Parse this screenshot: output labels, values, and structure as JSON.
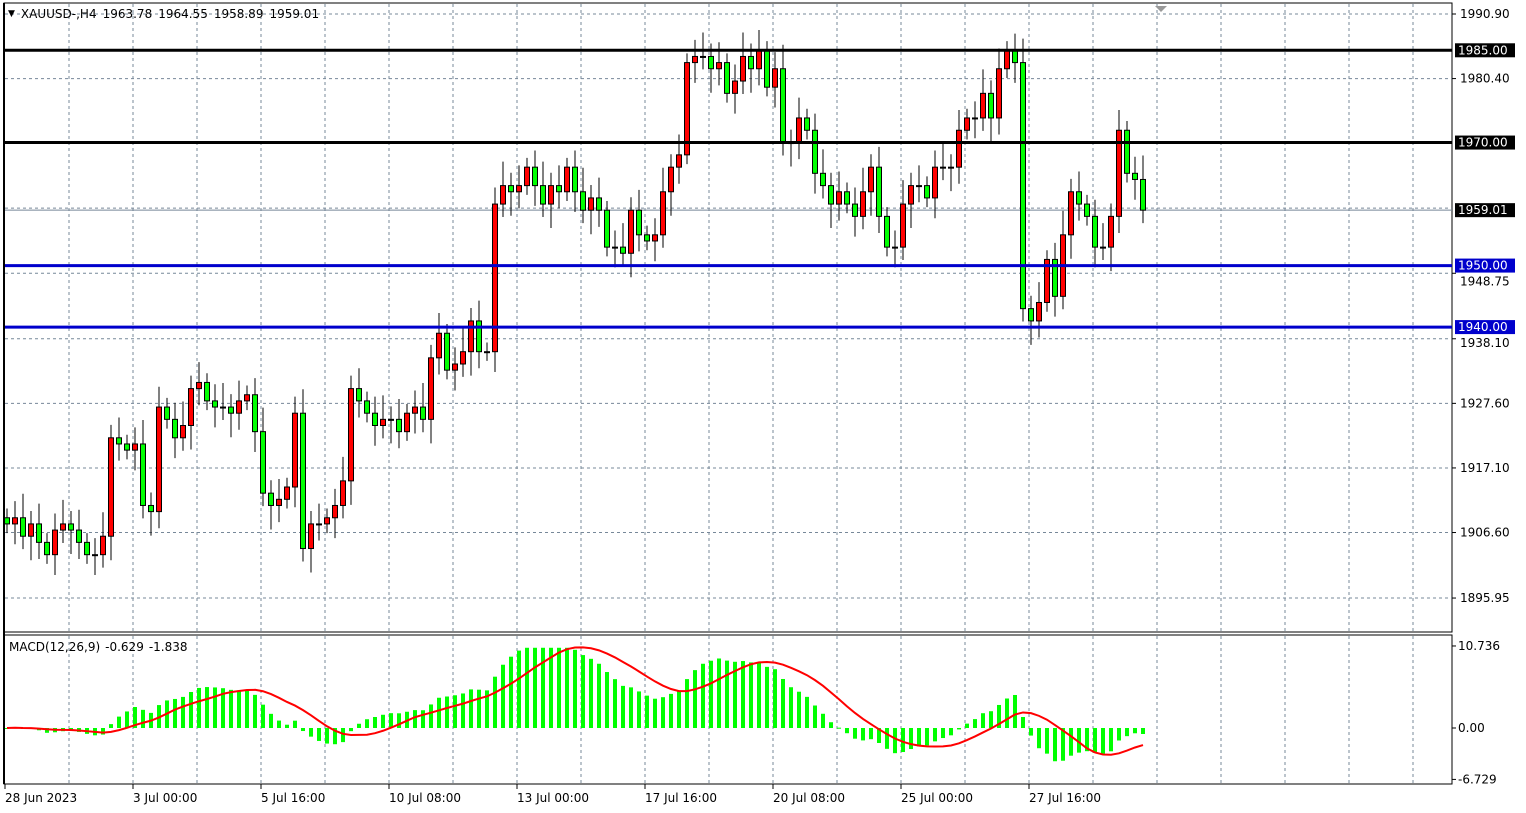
{
  "header": {
    "symbol": "XAUUSD-,H4",
    "open": "1963.78",
    "high": "1964.55",
    "low": "1958.89",
    "close": "1959.01"
  },
  "macd_header": {
    "label": "MACD(12,26,9)",
    "main": "-0.629",
    "signal": "-1.838"
  },
  "colors": {
    "bull_body": "#ff0000",
    "bear_body": "#00ff00",
    "wick": "#000000",
    "grid": "#778899",
    "resistance_line": "#000000",
    "support_line": "#0000cc",
    "macd_hist": "#00ff00",
    "macd_signal": "#ff0000"
  },
  "chart_data": [
    {
      "type": "candlestick",
      "title": "XAUUSD-,H4",
      "timeframe": "H4",
      "ylim": [
        1893,
        1993
      ],
      "y_ticks": [
        "1990.90",
        "1980.40",
        "1948.75",
        "1938.10",
        "1927.60",
        "1917.10",
        "1906.60",
        "1895.95"
      ],
      "x_ticks": [
        "28 Jun 2023",
        "3 Jul 00:00",
        "5 Jul 16:00",
        "10 Jul 08:00",
        "13 Jul 00:00",
        "17 Jul 16:00",
        "20 Jul 08:00",
        "25 Jul 00:00",
        "27 Jul 16:00"
      ],
      "grid": true,
      "close": [
        1908,
        1909,
        1906,
        1908,
        1905,
        1903,
        1907,
        1908,
        1907,
        1905,
        1903,
        1903,
        1906,
        1922,
        1921,
        1920,
        1921,
        1911,
        1910,
        1927,
        1925,
        1922,
        1924,
        1930,
        1931,
        1928,
        1927,
        1927,
        1926,
        1928,
        1929,
        1923,
        1913,
        1911,
        1912,
        1914,
        1926,
        1904,
        1908,
        1908,
        1909,
        1911,
        1915,
        1930,
        1928,
        1926,
        1924,
        1925,
        1925,
        1923,
        1926,
        1927,
        1925,
        1935,
        1939,
        1933,
        1934,
        1936,
        1941,
        1936,
        1936,
        1960,
        1963,
        1962,
        1963,
        1966,
        1963,
        1960,
        1963,
        1962,
        1966,
        1962,
        1959,
        1961,
        1959,
        1953,
        1953,
        1952,
        1959,
        1955,
        1954,
        1955,
        1962,
        1966,
        1968,
        1983,
        1984,
        1984,
        1982,
        1983,
        1978,
        1980,
        1984,
        1982,
        1985,
        1979,
        1982,
        1970,
        1970,
        1974,
        1972,
        1965,
        1963,
        1960,
        1962,
        1960,
        1958,
        1962,
        1966,
        1958,
        1953,
        1953,
        1960,
        1963,
        1963,
        1961,
        1966,
        1966,
        1966,
        1972,
        1974,
        1974,
        1978,
        1974,
        1982,
        1985,
        1983,
        1943,
        1941,
        1944,
        1951,
        1945,
        1955,
        1962,
        1960,
        1958,
        1953,
        1953,
        1958,
        1972,
        1965,
        1964,
        1959.01
      ],
      "horizontal_lines": [
        {
          "price": "1985.00",
          "color": "#000000"
        },
        {
          "price": "1970.00",
          "color": "#000000"
        },
        {
          "price": "1950.00",
          "color": "#0000cc"
        },
        {
          "price": "1940.00",
          "color": "#0000cc"
        }
      ],
      "bid_line": "1959.01"
    },
    {
      "type": "bar",
      "title": "MACD(12,26,9)",
      "ylim": [
        -6.729,
        10.736
      ],
      "y_ticks": [
        "10.736",
        "0.00",
        "-6.729"
      ],
      "main_value": -0.629,
      "signal_value": -1.838
    }
  ]
}
